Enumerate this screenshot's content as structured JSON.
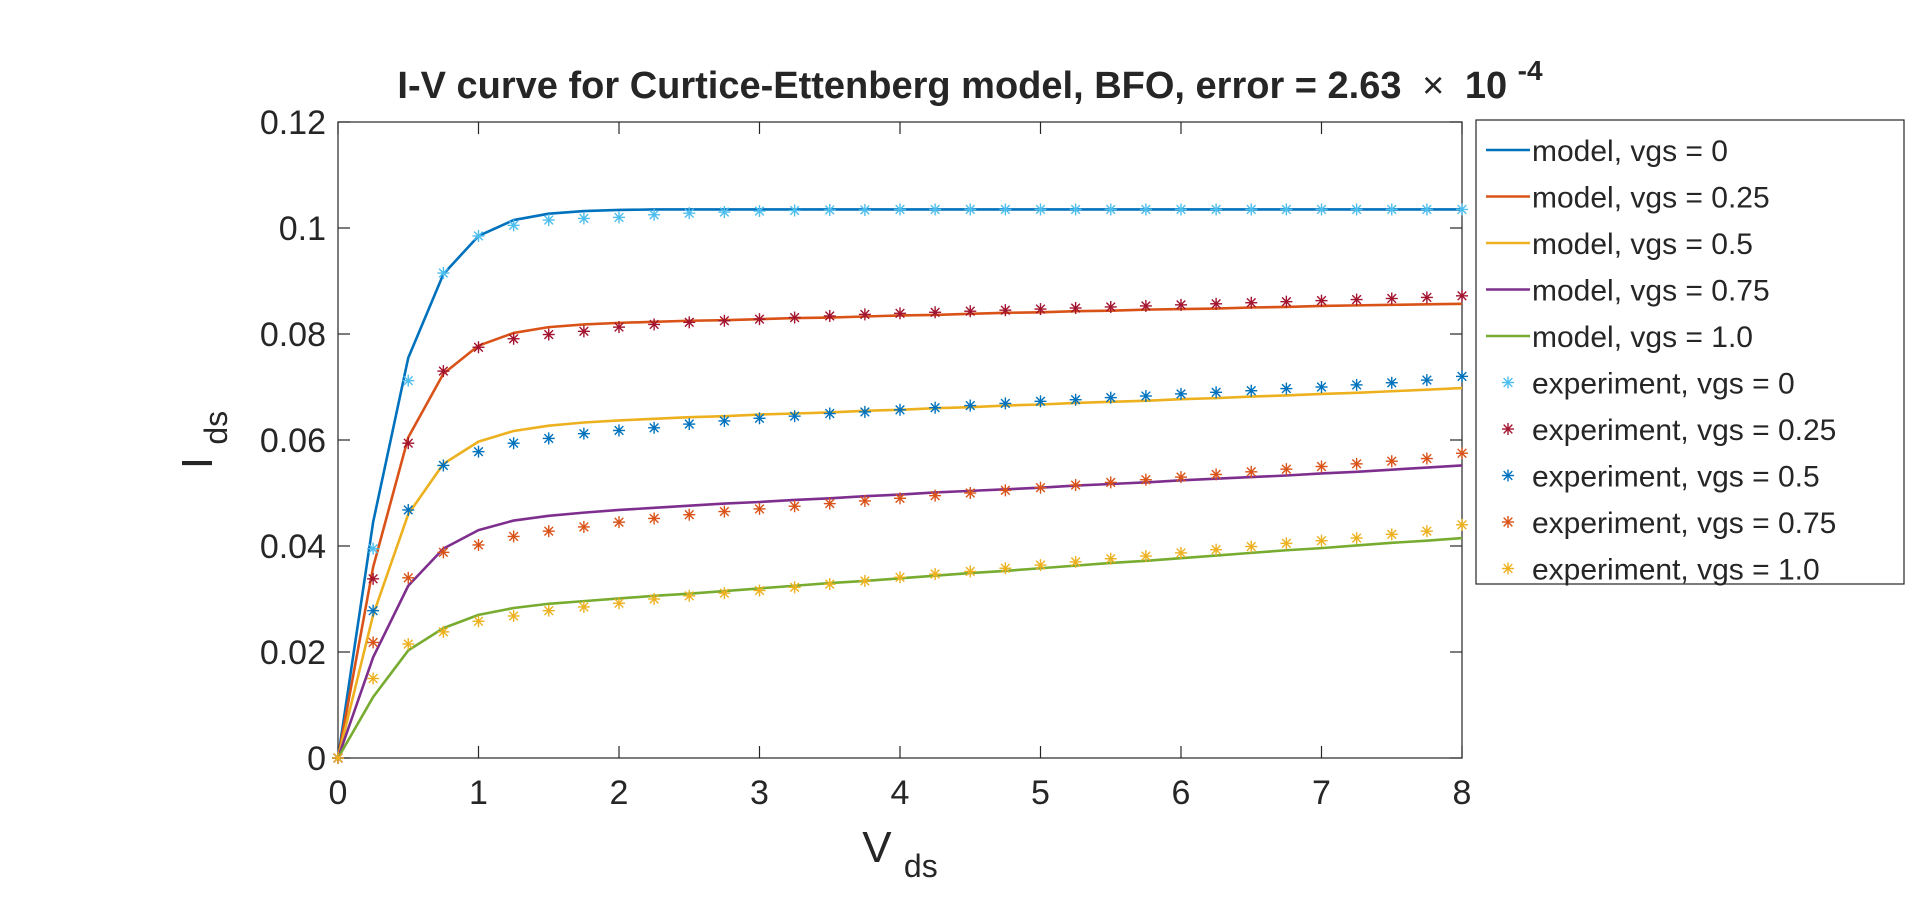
{
  "chart_data": {
    "type": "line",
    "title": {
      "main": "I-V curve for Curtice-Ettenberg model, BFO, error = 2.63",
      "times": "×",
      "base": "10",
      "exponent": "-4"
    },
    "xlabel": {
      "main": "V",
      "sub": "ds"
    },
    "ylabel": {
      "main": "I",
      "sub": "ds"
    },
    "xlim": [
      0,
      8
    ],
    "ylim": [
      0,
      0.12
    ],
    "xticks": [
      0,
      1,
      2,
      3,
      4,
      5,
      6,
      7,
      8
    ],
    "yticks": [
      0,
      0.02,
      0.04,
      0.06,
      0.08,
      0.1,
      0.12
    ],
    "xtick_labels": [
      "0",
      "1",
      "2",
      "3",
      "4",
      "5",
      "6",
      "7",
      "8"
    ],
    "ytick_labels": [
      "0",
      "0.02",
      "0.04",
      "0.06",
      "0.08",
      "0.1",
      "0.12"
    ],
    "grid": false,
    "legend_position": "outside-right",
    "x": [
      0,
      0.25,
      0.5,
      0.75,
      1,
      1.25,
      1.5,
      1.75,
      2,
      2.25,
      2.5,
      2.75,
      3,
      3.25,
      3.5,
      3.75,
      4,
      4.25,
      4.5,
      4.75,
      5,
      5.25,
      5.5,
      5.75,
      6,
      6.25,
      6.5,
      6.75,
      7,
      7.25,
      7.5,
      7.75,
      8
    ],
    "series": [
      {
        "name": "model, vgs = 0",
        "kind": "line",
        "color": "#0072BD",
        "values": [
          0,
          0.0445,
          0.0755,
          0.0913,
          0.0985,
          0.1015,
          0.1027,
          0.1032,
          0.1034,
          0.1035,
          0.1035,
          0.1035,
          0.1035,
          0.1035,
          0.1035,
          0.1035,
          0.1035,
          0.1035,
          0.1035,
          0.1035,
          0.1035,
          0.1035,
          0.1035,
          0.1035,
          0.1035,
          0.1035,
          0.1035,
          0.1035,
          0.1035,
          0.1035,
          0.1035,
          0.1035,
          0.1035
        ]
      },
      {
        "name": "model, vgs = 0.25",
        "kind": "line",
        "color": "#D95319",
        "values": [
          0,
          0.036,
          0.0605,
          0.0725,
          0.0778,
          0.0802,
          0.0813,
          0.0818,
          0.0821,
          0.0823,
          0.0825,
          0.0826,
          0.0828,
          0.083,
          0.0831,
          0.0833,
          0.0835,
          0.0836,
          0.0838,
          0.084,
          0.0841,
          0.0843,
          0.0844,
          0.0846,
          0.0847,
          0.0848,
          0.085,
          0.0851,
          0.0853,
          0.0854,
          0.0855,
          0.0856,
          0.0857
        ]
      },
      {
        "name": "model, vgs = 0.5",
        "kind": "line",
        "color": "#EDB120",
        "values": [
          0,
          0.027,
          0.046,
          0.0555,
          0.0597,
          0.0617,
          0.0627,
          0.0633,
          0.0637,
          0.064,
          0.0643,
          0.0645,
          0.0648,
          0.065,
          0.0652,
          0.0655,
          0.0657,
          0.066,
          0.0662,
          0.0665,
          0.0667,
          0.067,
          0.0672,
          0.0674,
          0.0677,
          0.0679,
          0.0682,
          0.0684,
          0.0687,
          0.0689,
          0.0692,
          0.0695,
          0.0698
        ]
      },
      {
        "name": "model, vgs = 0.75",
        "kind": "line",
        "color": "#7E2F8E",
        "values": [
          0,
          0.019,
          0.0325,
          0.0395,
          0.043,
          0.0448,
          0.0457,
          0.0463,
          0.0468,
          0.0472,
          0.0476,
          0.048,
          0.0483,
          0.0487,
          0.049,
          0.0494,
          0.0497,
          0.0501,
          0.0504,
          0.0507,
          0.051,
          0.0514,
          0.0517,
          0.052,
          0.0524,
          0.0527,
          0.053,
          0.0533,
          0.0537,
          0.054,
          0.0544,
          0.0548,
          0.0552
        ]
      },
      {
        "name": "model, vgs = 1.0",
        "kind": "line",
        "color": "#77AC30",
        "values": [
          0,
          0.0115,
          0.0203,
          0.0245,
          0.027,
          0.0283,
          0.0291,
          0.0296,
          0.0301,
          0.0306,
          0.031,
          0.0315,
          0.032,
          0.0325,
          0.033,
          0.0334,
          0.0339,
          0.0344,
          0.0349,
          0.0353,
          0.0358,
          0.0363,
          0.0368,
          0.0372,
          0.0377,
          0.0382,
          0.0387,
          0.0392,
          0.0396,
          0.0401,
          0.0406,
          0.041,
          0.0415
        ]
      },
      {
        "name": "experiment, vgs = 0",
        "kind": "marker",
        "color": "#4DBEEE",
        "values": [
          0,
          0.0395,
          0.0712,
          0.0915,
          0.0985,
          0.1005,
          0.1015,
          0.1018,
          0.102,
          0.1025,
          0.1028,
          0.103,
          0.1032,
          0.1033,
          0.1034,
          0.1034,
          0.1035,
          0.1035,
          0.1035,
          0.1035,
          0.1035,
          0.1035,
          0.1035,
          0.1035,
          0.1035,
          0.1035,
          0.1035,
          0.1035,
          0.1035,
          0.1035,
          0.1035,
          0.1035,
          0.1035
        ]
      },
      {
        "name": "experiment, vgs = 0.25",
        "kind": "marker",
        "color": "#A2142F",
        "values": [
          0,
          0.0338,
          0.0594,
          0.073,
          0.0775,
          0.0791,
          0.0799,
          0.0805,
          0.0813,
          0.0818,
          0.0822,
          0.0825,
          0.0828,
          0.0831,
          0.0834,
          0.0837,
          0.0839,
          0.0841,
          0.0843,
          0.0845,
          0.0847,
          0.0849,
          0.0851,
          0.0853,
          0.0855,
          0.0857,
          0.0859,
          0.0861,
          0.0863,
          0.0865,
          0.0867,
          0.0869,
          0.0872
        ]
      },
      {
        "name": "experiment, vgs = 0.5",
        "kind": "marker",
        "color": "#0072BD",
        "values": [
          0,
          0.0278,
          0.0468,
          0.0552,
          0.0578,
          0.0594,
          0.0603,
          0.0612,
          0.0618,
          0.0623,
          0.063,
          0.0636,
          0.0641,
          0.0645,
          0.065,
          0.0653,
          0.0657,
          0.0661,
          0.0665,
          0.0669,
          0.0673,
          0.0676,
          0.068,
          0.0683,
          0.0687,
          0.069,
          0.0693,
          0.0697,
          0.07,
          0.0704,
          0.0708,
          0.0713,
          0.072
        ]
      },
      {
        "name": "experiment, vgs = 0.75",
        "kind": "marker",
        "color": "#D95319",
        "values": [
          0,
          0.0218,
          0.034,
          0.0388,
          0.0402,
          0.0418,
          0.0428,
          0.0436,
          0.0445,
          0.0452,
          0.0459,
          0.0465,
          0.047,
          0.0475,
          0.048,
          0.0485,
          0.049,
          0.0495,
          0.05,
          0.0505,
          0.051,
          0.0515,
          0.052,
          0.0525,
          0.053,
          0.0535,
          0.054,
          0.0545,
          0.055,
          0.0555,
          0.056,
          0.0565,
          0.0575
        ]
      },
      {
        "name": "experiment, vgs = 1.0",
        "kind": "marker",
        "color": "#EDB120",
        "values": [
          0,
          0.015,
          0.0215,
          0.0238,
          0.0258,
          0.0268,
          0.0278,
          0.0285,
          0.0292,
          0.03,
          0.0306,
          0.0311,
          0.0316,
          0.0322,
          0.0328,
          0.0334,
          0.0341,
          0.0347,
          0.0352,
          0.0358,
          0.0364,
          0.037,
          0.0376,
          0.0381,
          0.0387,
          0.0393,
          0.0399,
          0.0405,
          0.041,
          0.0415,
          0.0422,
          0.0428,
          0.044
        ]
      }
    ]
  }
}
